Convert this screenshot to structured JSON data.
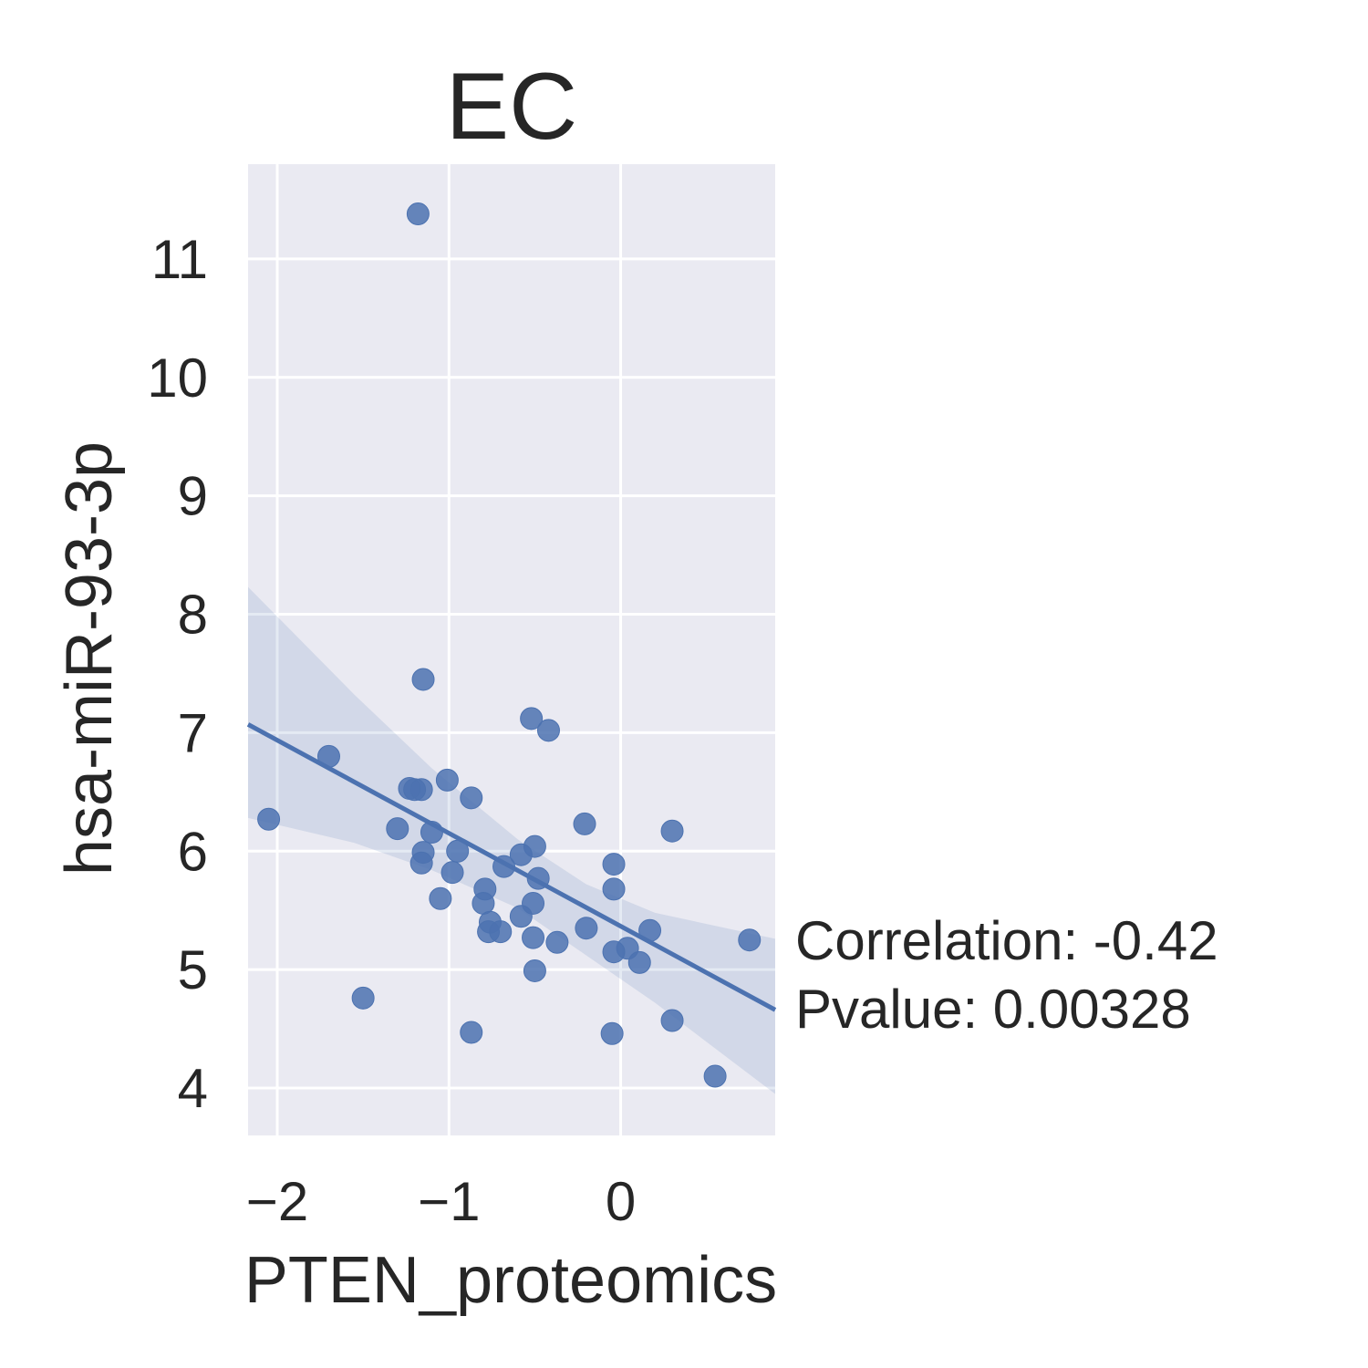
{
  "chart_data": {
    "type": "scatter",
    "title": "EC",
    "xlabel": "PTEN_proteomics",
    "ylabel": "hsa-miR-93-3p",
    "xlim": [
      -2.17,
      0.9
    ],
    "ylim": [
      3.6,
      11.8
    ],
    "xticks": [
      -2,
      -1,
      0
    ],
    "xtick_labels": [
      "−2",
      "−1",
      "0"
    ],
    "yticks": [
      4,
      5,
      6,
      7,
      8,
      9,
      10,
      11
    ],
    "ytick_labels": [
      "4",
      "5",
      "6",
      "7",
      "8",
      "9",
      "10",
      "11"
    ],
    "grid": true,
    "background_color": "#eaeaf2",
    "grid_color": "#ffffff",
    "point_color": "#4c72b0",
    "line_color": "#4c72b0",
    "band_color": "#4c72b0",
    "annotation": {
      "correlation": "Correlation: -0.42",
      "pvalue": "Pvalue: 0.00328"
    },
    "points": [
      {
        "x": -1.18,
        "y": 11.38
      },
      {
        "x": -1.15,
        "y": 7.45
      },
      {
        "x": -0.52,
        "y": 7.12
      },
      {
        "x": -0.42,
        "y": 7.02
      },
      {
        "x": -1.7,
        "y": 6.8
      },
      {
        "x": -1.01,
        "y": 6.6
      },
      {
        "x": -1.23,
        "y": 6.53
      },
      {
        "x": -1.2,
        "y": 6.52
      },
      {
        "x": -1.16,
        "y": 6.52
      },
      {
        "x": -0.87,
        "y": 6.45
      },
      {
        "x": -2.05,
        "y": 6.27
      },
      {
        "x": -0.21,
        "y": 6.23
      },
      {
        "x": 0.3,
        "y": 6.17
      },
      {
        "x": -1.3,
        "y": 6.19
      },
      {
        "x": -1.1,
        "y": 6.16
      },
      {
        "x": -0.5,
        "y": 6.04
      },
      {
        "x": -0.95,
        "y": 6.0
      },
      {
        "x": -1.15,
        "y": 5.99
      },
      {
        "x": -0.58,
        "y": 5.97
      },
      {
        "x": -0.68,
        "y": 5.87
      },
      {
        "x": -1.16,
        "y": 5.9
      },
      {
        "x": -0.04,
        "y": 5.89
      },
      {
        "x": -0.98,
        "y": 5.82
      },
      {
        "x": -0.48,
        "y": 5.77
      },
      {
        "x": -0.79,
        "y": 5.68
      },
      {
        "x": -0.04,
        "y": 5.68
      },
      {
        "x": -1.05,
        "y": 5.6
      },
      {
        "x": -0.8,
        "y": 5.56
      },
      {
        "x": -0.51,
        "y": 5.56
      },
      {
        "x": -0.58,
        "y": 5.45
      },
      {
        "x": -0.76,
        "y": 5.4
      },
      {
        "x": -0.2,
        "y": 5.35
      },
      {
        "x": -0.77,
        "y": 5.32
      },
      {
        "x": -0.7,
        "y": 5.32
      },
      {
        "x": 0.17,
        "y": 5.33
      },
      {
        "x": -0.51,
        "y": 5.27
      },
      {
        "x": 0.75,
        "y": 5.25
      },
      {
        "x": -0.37,
        "y": 5.23
      },
      {
        "x": 0.04,
        "y": 5.18
      },
      {
        "x": -0.04,
        "y": 5.15
      },
      {
        "x": 0.11,
        "y": 5.06
      },
      {
        "x": -0.5,
        "y": 4.99
      },
      {
        "x": -1.5,
        "y": 4.76
      },
      {
        "x": 0.3,
        "y": 4.57
      },
      {
        "x": -0.87,
        "y": 4.47
      },
      {
        "x": -0.05,
        "y": 4.46
      },
      {
        "x": 0.55,
        "y": 4.1
      }
    ],
    "regression": {
      "x": [
        -2.17,
        0.9
      ],
      "y": [
        7.07,
        4.66
      ]
    },
    "confidence_band": {
      "x": [
        -2.17,
        -1.55,
        -1.1,
        -0.6,
        -0.2,
        0.2,
        0.9
      ],
      "upper": [
        8.23,
        7.32,
        6.7,
        6.1,
        5.72,
        5.48,
        5.26
      ],
      "lower": [
        6.28,
        6.07,
        5.84,
        5.52,
        5.12,
        4.72,
        3.95
      ]
    }
  }
}
